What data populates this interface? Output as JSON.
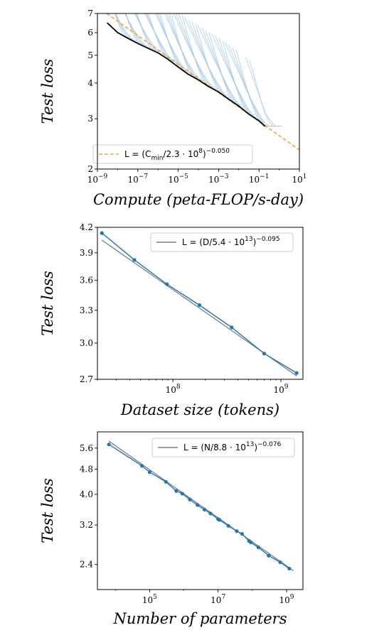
{
  "chart_data": [
    {
      "type": "line",
      "xlabel": "Compute (peta-FLOP/s-day)",
      "ylabel": "Test loss",
      "xscale": "log",
      "yscale": "log",
      "xlim": [
        1e-09,
        10
      ],
      "ylim": [
        2,
        7
      ],
      "xticks": [
        {
          "exp": "-9"
        },
        {
          "exp": "-7"
        },
        {
          "exp": "-5"
        },
        {
          "exp": "-3"
        },
        {
          "exp": "-1"
        },
        {
          "exp": "1"
        }
      ],
      "yticks": [
        "2",
        "3",
        "4",
        "5",
        "6",
        "7"
      ],
      "legend": {
        "position": "bottom-left",
        "entry": {
          "base": "L = (C",
          "sub": "min",
          "mid": "/2.3 · 10",
          "sup1": "8",
          "close": ")",
          "sup2": "−0.050"
        }
      },
      "colors": {
        "frontier": "#000000",
        "fit": "#f5a623",
        "runs": "#9ec5e2"
      },
      "frontier": {
        "x": [
          3e-09,
          1e-08,
          3e-08,
          1e-07,
          3e-07,
          1e-06,
          3e-06,
          1e-05,
          3e-05,
          0.0001,
          0.0003,
          0.001,
          0.003,
          0.01,
          0.03,
          0.1,
          0.2
        ],
        "y": [
          6.5,
          6.0,
          5.75,
          5.5,
          5.3,
          5.1,
          4.85,
          4.55,
          4.3,
          4.1,
          3.9,
          3.72,
          3.52,
          3.32,
          3.12,
          2.95,
          2.82
        ]
      },
      "fit": {
        "C0": 230000000.0,
        "alpha": 0.05
      }
    },
    {
      "type": "line",
      "xlabel": "Dataset size (tokens)",
      "ylabel": "Test loss",
      "xscale": "log",
      "yscale": "log",
      "xlim": [
        20000000.0,
        1600000000.0
      ],
      "ylim": [
        2.7,
        4.2
      ],
      "xticks": [
        {
          "exp": "8"
        },
        {
          "exp": "9"
        }
      ],
      "yticks": [
        "2.7",
        "3.0",
        "3.3",
        "3.6",
        "3.9",
        "4.2"
      ],
      "legend": {
        "position": "top-right",
        "entry": {
          "base": "L = (D/5.4 · 10",
          "sup1": "13",
          "close": ")",
          "sup2": "−0.095"
        }
      },
      "colors": {
        "data": "#1f77b4",
        "fit": "#7f7f7f"
      },
      "points": {
        "x": [
          22000000.0,
          44000000.0,
          88000000.0,
          176000000.0,
          350000000.0,
          700000000.0,
          1400000000.0
        ],
        "y": [
          4.13,
          3.82,
          3.56,
          3.35,
          3.14,
          2.91,
          2.75
        ]
      },
      "fit": {
        "D0": 54000000000000.0,
        "alpha": 0.095
      }
    },
    {
      "type": "line",
      "xlabel": "Number of parameters",
      "ylabel": "Test loss",
      "xscale": "log",
      "yscale": "log",
      "xlim": [
        3000.0,
        3000000000.0
      ],
      "ylim": [
        2.0,
        6.3
      ],
      "xticks": [
        {
          "exp": "5"
        },
        {
          "exp": "7"
        },
        {
          "exp": "9"
        }
      ],
      "yticks": [
        "2.4",
        "3.2",
        "4.0",
        "4.8",
        "5.6"
      ],
      "legend": {
        "position": "top-right",
        "entry": {
          "base": "L = (N/8.8 · 10",
          "sup1": "13",
          "close": ")",
          "sup2": "−0.076"
        }
      },
      "colors": {
        "data": "#1f77b4",
        "fit": "#7f7f7f"
      },
      "points": {
        "x": [
          6500.0,
          60000.0,
          100000.0,
          300000.0,
          600000.0,
          900000.0,
          1500000.0,
          2500000.0,
          4000000.0,
          6000000.0,
          10000000.0,
          11000000.0,
          20000000.0,
          35000000.0,
          50000000.0,
          80000000.0,
          90000000.0,
          150000000.0,
          300000000.0,
          650000000.0,
          1200000000.0
        ],
        "y": [
          5.75,
          4.92,
          4.7,
          4.38,
          4.1,
          4.02,
          3.85,
          3.7,
          3.58,
          3.48,
          3.34,
          3.32,
          3.18,
          3.06,
          3.0,
          2.85,
          2.82,
          2.72,
          2.56,
          2.44,
          2.33
        ]
      },
      "fit": {
        "N0": 88000000000000.0,
        "alpha": 0.076
      }
    }
  ]
}
